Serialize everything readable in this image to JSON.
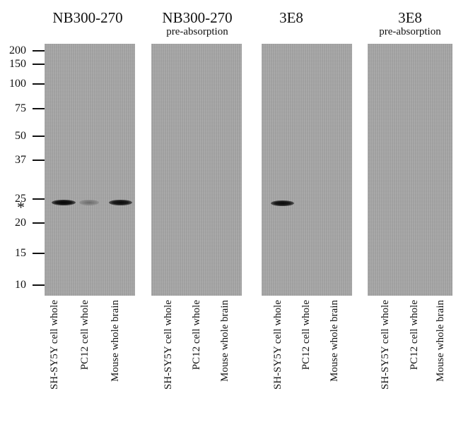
{
  "panels": [
    {
      "title": "NB300-270",
      "subtitle": ""
    },
    {
      "title": "NB300-270",
      "subtitle": "pre-absorption"
    },
    {
      "title": "3E8",
      "subtitle": ""
    },
    {
      "title": "3E8",
      "subtitle": "pre-absorption"
    }
  ],
  "molecular_weight_markers": [
    "200",
    "150",
    "100",
    "75",
    "50",
    "37",
    "25",
    "20",
    "15",
    "10"
  ],
  "asterisk": "*",
  "lanes": [
    "SH-SY5Y cell whole",
    "PC12 cell whole",
    "Mouse whole brain"
  ]
}
